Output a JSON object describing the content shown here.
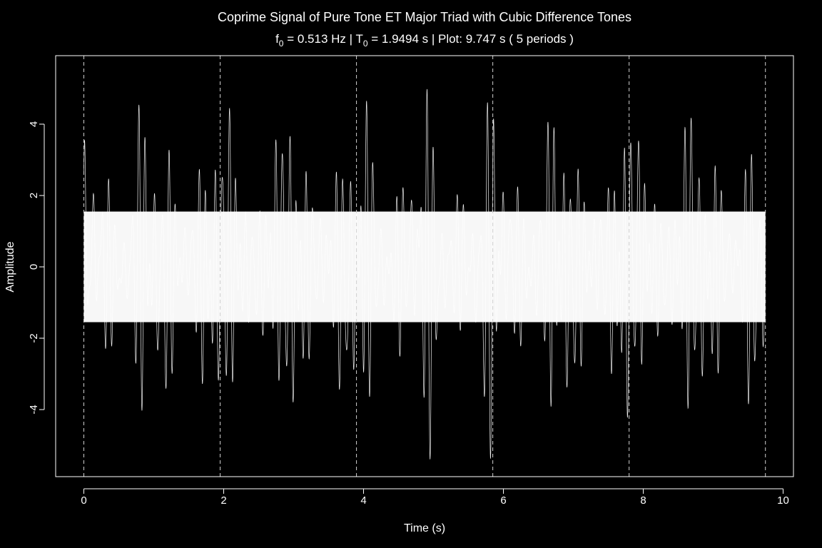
{
  "colors": {
    "background": "#000000",
    "foreground": "#ffffff",
    "marker": "#d0d0d0"
  },
  "chart_data": {
    "type": "line",
    "title": "Coprime Signal of Pure Tone ET Major Triad with Cubic Difference Tones",
    "subtitle": {
      "f0_label": "f",
      "f0_sub": "0",
      "f0_value": " = 0.513 Hz  |  T",
      "T0_sub": "0",
      "T0_value": " = 1.9494 s  |  Plot: 9.747 s ( 5 periods )"
    },
    "xlabel": "Time (s)",
    "ylabel": "Amplitude",
    "xlim": [
      0,
      10
    ],
    "ylim": [
      -6,
      6
    ],
    "x_ticks": [
      0,
      2,
      4,
      6,
      8,
      10
    ],
    "y_ticks": [
      -4,
      -2,
      0,
      2,
      4
    ],
    "x_tick_labels": [
      "0",
      "2",
      "4",
      "6",
      "8",
      "10"
    ],
    "y_tick_labels": [
      "-4",
      "-2",
      "0",
      "2",
      "4"
    ],
    "period_markers": [
      0,
      1.9494,
      3.8988,
      5.8482,
      7.7976,
      9.747
    ],
    "signal": {
      "f0_hz": 0.513,
      "period_s": 1.9494,
      "duration_s": 9.747,
      "periods": 5,
      "peak_amplitude": 5.45,
      "cycles_per_period": 18,
      "envelope_lobes_per_period": 2
    }
  }
}
